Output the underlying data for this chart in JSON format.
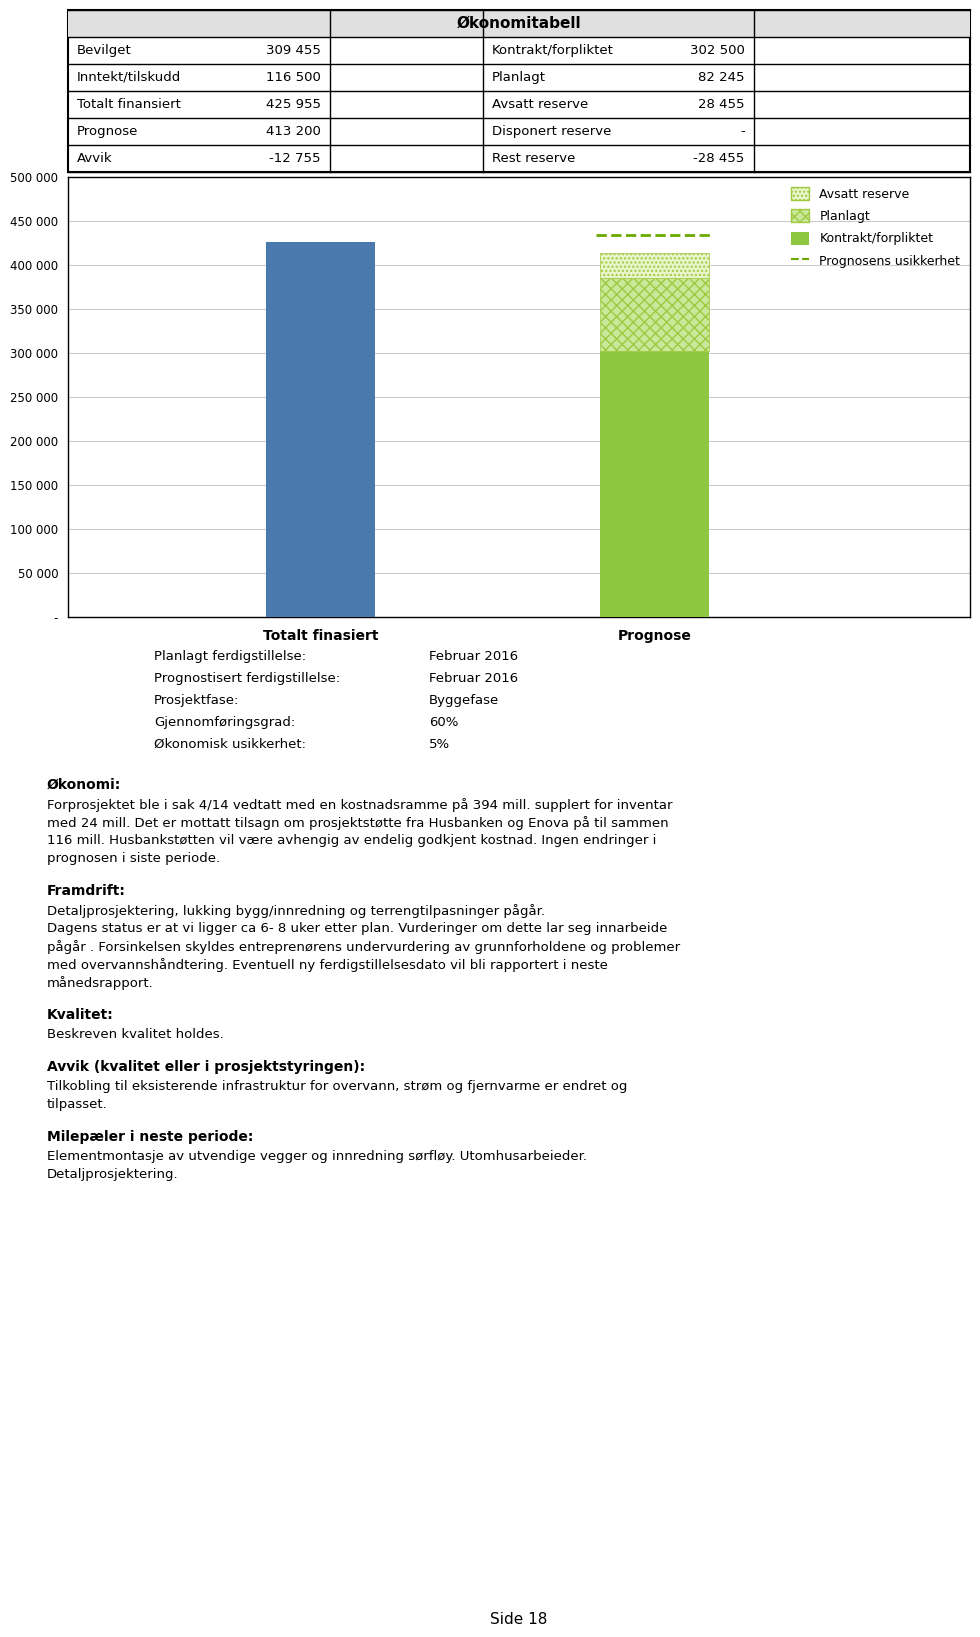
{
  "table_title": "Økonomitabell",
  "table_rows": [
    [
      "Bevilget",
      "309 455",
      "Kontrakt/forpliktet",
      "302 500"
    ],
    [
      "Inntekt/tilskudd",
      "116 500",
      "Planlagt",
      "82 245"
    ],
    [
      "Totalt finansiert",
      "425 955",
      "Avsatt reserve",
      "28 455"
    ],
    [
      "Prognose",
      "413 200",
      "Disponert reserve",
      "-"
    ],
    [
      "Avvik",
      "-12 755",
      "Rest reserve",
      "-28 455"
    ]
  ],
  "chart_categories": [
    "Totalt finasiert",
    "Prognose"
  ],
  "bar1_base": 425955,
  "bar2_kontrakt": 302500,
  "bar2_planlagt": 82245,
  "bar2_avsatt": 28455,
  "bar2_prognosens": 20665,
  "bar_color_blue": "#4a7aad",
  "bar_color_green": "#8dc63f",
  "ylim_max": 500000,
  "ylim_min": 0,
  "yticks": [
    0,
    50000,
    100000,
    150000,
    200000,
    250000,
    300000,
    350000,
    400000,
    450000,
    500000
  ],
  "info_labels": [
    [
      "Planlagt ferdigstillelse:",
      "Februar 2016"
    ],
    [
      "Prognostisert ferdigstillelse:",
      "Februar 2016"
    ],
    [
      "Prosjektfase:",
      "Byggefase"
    ],
    [
      "Gjennomføringsgrad:",
      "60%"
    ],
    [
      "Økonomisk usikkerhet:",
      "5%"
    ]
  ],
  "okonomi_title": "Økonomi:",
  "okonomi_lines": [
    "Forprosjektet ble i sak 4/14 vedtatt med en kostnadsramme på 394 mill. supplert for inventar",
    "med 24 mill. Det er mottatt tilsagn om prosjektstøtte fra Husbanken og Enova på til sammen",
    "116 mill. Husbankstøtten vil være avhengig av endelig godkjent kostnad. Ingen endringer i",
    "prognosen i siste periode."
  ],
  "framdrift_title": "Framdrift:",
  "framdrift_lines": [
    "Detaljprosjektering, lukking bygg/innredning og terrengtilpasninger pågår.",
    "Dagens status er at vi ligger ca 6- 8 uker etter plan. Vurderinger om dette lar seg innarbeide",
    "pågår . Forsinkelsen skyldes entreprenørens undervurdering av grunnforholdene og problemer",
    "med overvannshåndtering. Eventuell ny ferdigstillelsesdato vil bli rapportert i neste",
    "månedsrapport."
  ],
  "kvalitet_title": "Kvalitet:",
  "kvalitet_lines": [
    "Beskreven kvalitet holdes."
  ],
  "avvik_title": "Avvik (kvalitet eller i prosjektstyringen):",
  "avvik_lines": [
    "Tilkobling til eksisterende infrastruktur for overvann, strøm og fjernvarme er endret og",
    "tilpasset."
  ],
  "milepeler_title": "Milepæler i neste periode:",
  "milepeler_lines": [
    "Elementmontasje av utvendige vegger og innredning sørfløy. Utomhusarbeieder.",
    "Detaljprosjektering."
  ],
  "page_label": "Side 18",
  "bg_color": "#ffffff",
  "grid_color": "#cccccc",
  "text_color": "#000000"
}
